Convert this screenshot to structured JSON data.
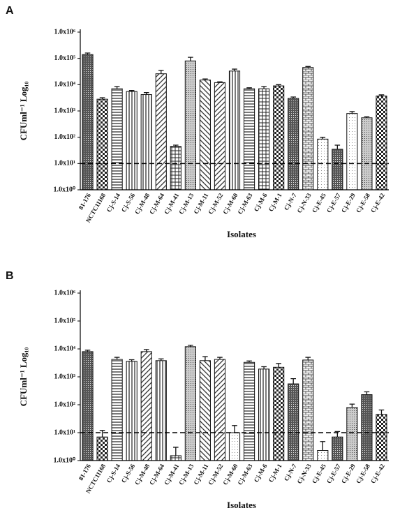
{
  "chart_data": [
    {
      "type": "bar",
      "label": "A",
      "ylabel": "CFUml⁻¹ Log₁₀",
      "xlabel": "Isolates",
      "yscale": "log",
      "ylim": [
        1,
        1000000
      ],
      "yticks": [
        {
          "value": 1,
          "label": "1.0x10⁰"
        },
        {
          "value": 10,
          "label": "1.0x10¹"
        },
        {
          "value": 100,
          "label": "1.0x10²"
        },
        {
          "value": 1000,
          "label": "1.0x10³"
        },
        {
          "value": 10000,
          "label": "1.0x10⁴"
        },
        {
          "value": 100000,
          "label": "1.0x10⁵"
        },
        {
          "value": 1000000,
          "label": "1.0x10⁶"
        }
      ],
      "reference_line": 10,
      "categories": [
        "81-176",
        "NCTC11168",
        "Cj-S-14",
        "Cj-S-56",
        "Cj-M-48",
        "Cj-M-64",
        "Cj-M-41",
        "Cj-M-13",
        "Cj-M-11",
        "Cj-M-52",
        "Cj-M-60",
        "Cj-M-63",
        "Cj-M-6",
        "Cj-M-1",
        "Cj-N-7",
        "Cj-N-33",
        "Cj-E-45",
        "Cj-E-57",
        "Cj-E-29",
        "Cj-E-58",
        "Cj-E-42"
      ],
      "values": [
        140000,
        2800,
        7000,
        5500,
        4200,
        26000,
        45,
        80000,
        15000,
        12000,
        33000,
        7000,
        7000,
        9000,
        3000,
        45000,
        85,
        35,
        800,
        550,
        3700
      ],
      "errors": [
        20000,
        400,
        1500,
        500,
        800,
        9000,
        5,
        30000,
        1500,
        800,
        6000,
        600,
        1500,
        1000,
        400,
        4000,
        15,
        15,
        150,
        50,
        400
      ],
      "patterns": [
        "dense",
        "checker",
        "horizontal",
        "vertical",
        "vertical",
        "diagonal",
        "grid",
        "dots",
        "backdiag",
        "diagonal",
        "vertical",
        "horizontal",
        "grid",
        "checker",
        "dense",
        "brick",
        "light",
        "dense",
        "light",
        "dots",
        "checker"
      ]
    },
    {
      "type": "bar",
      "label": "B",
      "ylabel": "CFUml⁻¹ Log₁₀",
      "xlabel": "Isolates",
      "yscale": "log",
      "ylim": [
        1,
        1000000
      ],
      "yticks": [
        {
          "value": 1,
          "label": "1.0x10⁰"
        },
        {
          "value": 10,
          "label": "1.0x10¹"
        },
        {
          "value": 100,
          "label": "1.0x10²"
        },
        {
          "value": 1000,
          "label": "1.0x10³"
        },
        {
          "value": 10000,
          "label": "1.0x10⁴"
        },
        {
          "value": 100000,
          "label": "1.0x10⁵"
        },
        {
          "value": 1000000,
          "label": "1.0x10⁶"
        }
      ],
      "reference_line": 10,
      "categories": [
        "81-176",
        "NCTC11168",
        "Cj-S-14",
        "Cj-S-56",
        "Cj-M-48",
        "Cj-M-64",
        "Cj-M-41",
        "Cj-M-13",
        "Cj-M-11",
        "Cj-M-52",
        "Cj-M-60",
        "Cj-M-63",
        "Cj-M-6",
        "Cj-M-1",
        "Cj-N-7",
        "Cj-N-33",
        "Cj-E-45",
        "Cj-E-57",
        "Cj-E-29",
        "Cj-E-58",
        "Cj-E-42"
      ],
      "values": [
        8000,
        7,
        4200,
        3600,
        8000,
        3800,
        1.5,
        12000,
        3800,
        4200,
        10,
        3300,
        1900,
        2200,
        560,
        4000,
        2.3,
        7,
        80,
        230,
        45
      ],
      "errors": [
        1000,
        5,
        800,
        500,
        1500,
        600,
        1.5,
        1500,
        1500,
        800,
        8,
        400,
        400,
        800,
        300,
        1000,
        2.5,
        4,
        25,
        60,
        20
      ],
      "patterns": [
        "dense",
        "checker",
        "horizontal",
        "vertical",
        "diagonal",
        "vertical",
        "grid",
        "dots",
        "backdiag",
        "diagonal",
        "light",
        "horizontal",
        "vertical",
        "checker",
        "dense",
        "brick",
        "light",
        "dense",
        "dots",
        "dense",
        "checker"
      ]
    }
  ]
}
